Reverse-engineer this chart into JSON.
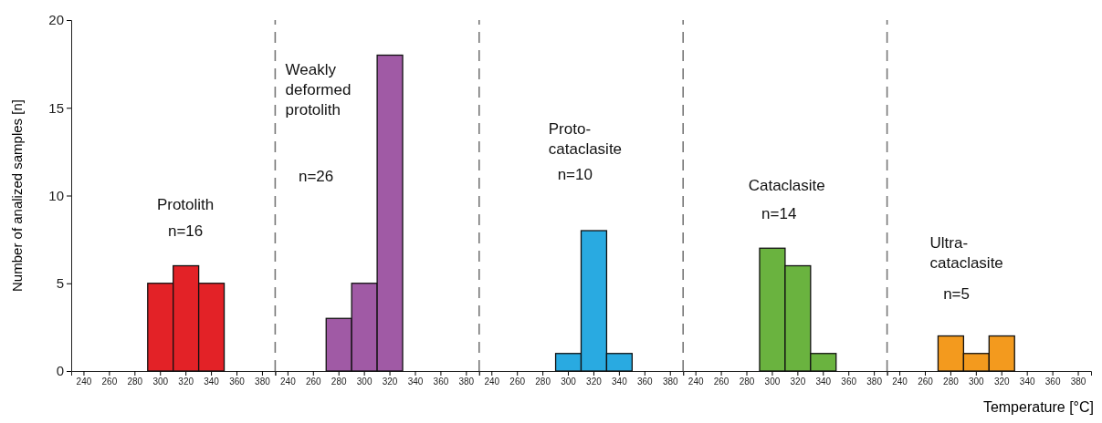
{
  "chart_data": [
    {
      "type": "bar",
      "categories": [
        "240",
        "260",
        "280",
        "300",
        "320",
        "340",
        "360",
        "380"
      ],
      "values": [
        null,
        null,
        null,
        5,
        6,
        5,
        null,
        null
      ],
      "color": "#e32227",
      "ylim": [
        0,
        20
      ],
      "yticks": [
        0,
        5,
        10,
        15,
        20
      ],
      "ylabel": "Number of analized samples [n]",
      "annotations": [
        "Protolith",
        "n=16"
      ]
    },
    {
      "type": "bar",
      "categories": [
        "240",
        "260",
        "280",
        "300",
        "320",
        "340",
        "360",
        "380"
      ],
      "values": [
        null,
        null,
        3,
        5,
        18,
        null,
        null,
        null
      ],
      "color": "#a05aa5",
      "ylim": [
        0,
        20
      ],
      "tick_labels": "x",
      "annotations": [
        "Weakly\ndeformed\nprotolith",
        "n=26"
      ]
    },
    {
      "type": "bar",
      "categories": [
        "240",
        "260",
        "280",
        "300",
        "320",
        "340",
        "360",
        "380"
      ],
      "values": [
        null,
        null,
        null,
        1,
        8,
        1,
        null,
        null
      ],
      "color": "#29aae1",
      "ylim": [
        0,
        20
      ],
      "tick_labels": "x",
      "annotations": [
        "Proto-\ncataclasite",
        "n=10"
      ]
    },
    {
      "type": "bar",
      "categories": [
        "240",
        "260",
        "280",
        "300",
        "320",
        "340",
        "360",
        "380"
      ],
      "values": [
        null,
        null,
        null,
        7,
        6,
        1,
        null,
        null
      ],
      "color": "#6ab33f",
      "ylim": [
        0,
        20
      ],
      "tick_labels": "x",
      "annotations": [
        "Cataclasite",
        "n=14"
      ]
    },
    {
      "type": "bar",
      "categories": [
        "240",
        "260",
        "280",
        "300",
        "320",
        "340",
        "360",
        "380"
      ],
      "values": [
        null,
        null,
        2,
        1,
        2,
        null,
        null,
        null
      ],
      "color": "#f39a1e",
      "ylim": [
        0,
        20
      ],
      "tick_labels": "x",
      "xlabel": "Temperature [°C]",
      "annotations": [
        "Ultra-\ncataclasite",
        "n=5"
      ]
    }
  ]
}
